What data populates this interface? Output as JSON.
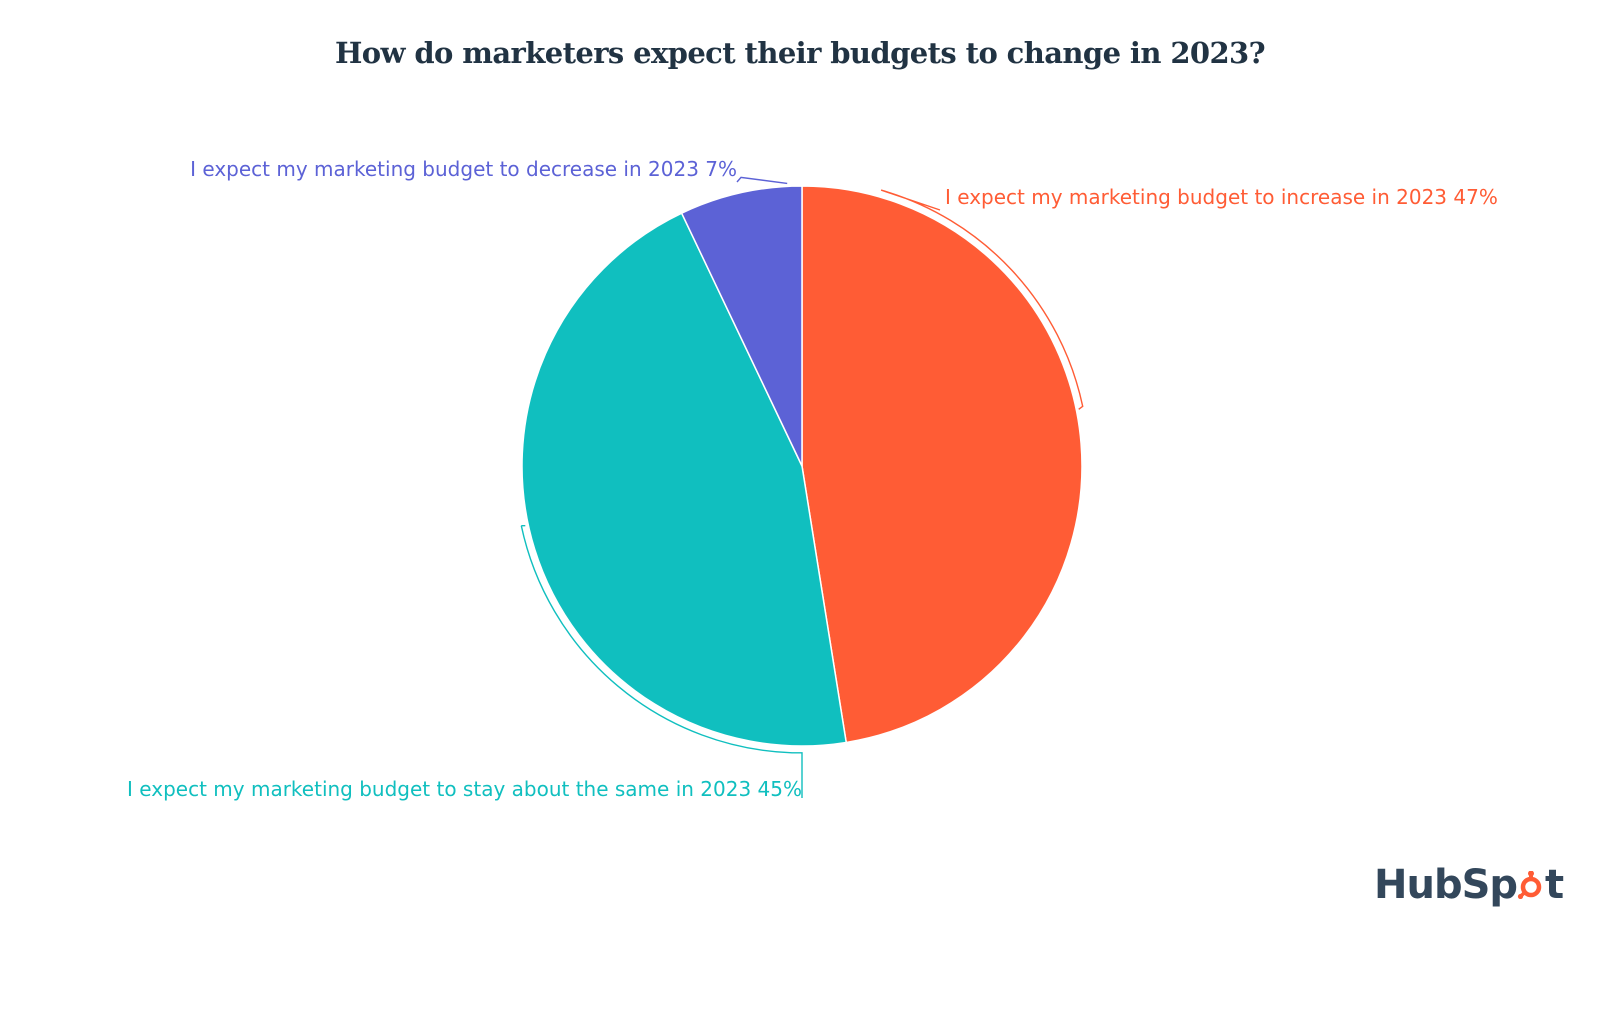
{
  "chart_data": {
    "type": "pie",
    "title": "How do marketers expect their budgets to change in 2023?",
    "slices": [
      {
        "label": "I expect my marketing budget to increase in 2023",
        "value": 47,
        "display": "47%",
        "color": "#ff5c35"
      },
      {
        "label": "I expect my marketing budget to stay about the same in 2023",
        "value": 45,
        "display": "45%",
        "color": "#10bfbf"
      },
      {
        "label": "I expect my marketing budget to decrease in 2023",
        "value": 7,
        "display": "7%",
        "color": "#5c62d6"
      }
    ],
    "start_angle": "12 o'clock",
    "direction": "clockwise",
    "legend": "none, slices labelled directly"
  },
  "logo": {
    "text": "HubSpot",
    "brand_color": "#33475b",
    "accent_color": "#ff5c35"
  }
}
